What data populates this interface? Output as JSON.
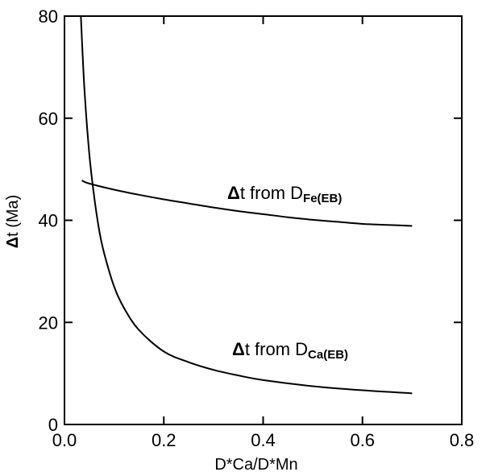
{
  "chart_data": {
    "type": "line",
    "xlabel": "D*Ca/D*Mn",
    "ylabel_parts": {
      "delta": "Δ",
      "text": "t  (Ma)"
    },
    "xlim": [
      0.0,
      0.8
    ],
    "ylim": [
      0,
      80
    ],
    "x_ticks": [
      0.0,
      0.2,
      0.4,
      0.6,
      0.8
    ],
    "x_tick_labels": [
      "0.0",
      "0.2",
      "0.4",
      "0.6",
      "0.8"
    ],
    "y_ticks": [
      0,
      20,
      40,
      60,
      80
    ],
    "y_tick_labels": [
      "0",
      "20",
      "40",
      "60",
      "80"
    ],
    "grid": false,
    "series": [
      {
        "name": "Δt from D_Fe(EB)",
        "x": [
          0.035,
          0.05,
          0.1,
          0.15,
          0.2,
          0.25,
          0.3,
          0.35,
          0.4,
          0.45,
          0.5,
          0.55,
          0.6,
          0.65,
          0.7
        ],
        "y": [
          47.8,
          47.2,
          46.0,
          45.0,
          44.1,
          43.3,
          42.5,
          41.8,
          41.2,
          40.6,
          40.1,
          39.7,
          39.3,
          39.1,
          38.9
        ]
      },
      {
        "name": "Δt from D_Ca(EB)",
        "x": [
          0.033,
          0.04,
          0.05,
          0.06,
          0.07,
          0.08,
          0.1,
          0.12,
          0.15,
          0.2,
          0.25,
          0.3,
          0.35,
          0.4,
          0.5,
          0.6,
          0.7
        ],
        "y": [
          80,
          66,
          53,
          44.5,
          38,
          33.5,
          27,
          22.8,
          18.5,
          14.3,
          12.2,
          10.7,
          9.6,
          8.7,
          7.5,
          6.7,
          6.1
        ]
      }
    ],
    "annotations": [
      {
        "delta": "Δ",
        "text": "t  from  D",
        "sub": "Fe(EB)",
        "series_index": 0
      },
      {
        "delta": "Δ",
        "text": "t  from  D",
        "sub": "Ca(EB)",
        "series_index": 1
      }
    ]
  }
}
